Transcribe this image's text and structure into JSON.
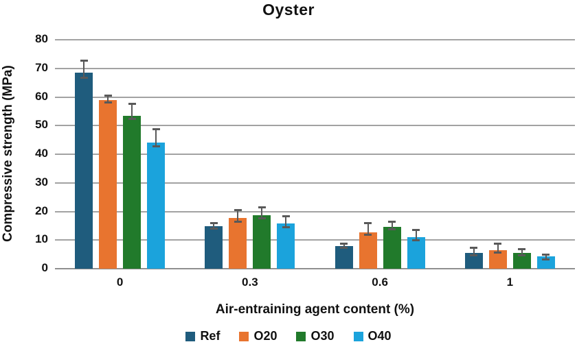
{
  "chart_data": {
    "type": "bar",
    "title": "Oyster",
    "xlabel": "Air-entraining agent content (%)",
    "ylabel": "Compressive strength (MPa)",
    "categories": [
      "0",
      "0.3",
      "0.6",
      "1"
    ],
    "series": [
      {
        "name": "Ref",
        "color": "#1f5c7d",
        "values": [
          68.5,
          14.8,
          7.9,
          5.5
        ],
        "err_up": [
          4.3,
          1.2,
          0.9,
          1.9
        ],
        "err_down": [
          1.8,
          0.8,
          0.5,
          0.8
        ]
      },
      {
        "name": "O20",
        "color": "#e8742f",
        "values": [
          59.0,
          17.8,
          12.7,
          6.5
        ],
        "err_up": [
          1.5,
          2.6,
          3.2,
          2.3
        ],
        "err_down": [
          1.0,
          1.3,
          0.9,
          0.9
        ]
      },
      {
        "name": "O30",
        "color": "#217a2b",
        "values": [
          53.5,
          18.8,
          14.5,
          5.5
        ],
        "err_up": [
          4.0,
          2.7,
          1.9,
          1.4
        ],
        "err_down": [
          1.2,
          1.2,
          0.8,
          0.9
        ]
      },
      {
        "name": "O40",
        "color": "#1ba3dc",
        "values": [
          44.0,
          15.8,
          11.0,
          4.2
        ],
        "err_up": [
          4.7,
          2.6,
          2.5,
          0.8
        ],
        "err_down": [
          1.2,
          1.3,
          1.0,
          0.9
        ]
      }
    ],
    "ylim": [
      0,
      80
    ],
    "ytick_step": 10,
    "grid": true,
    "legend_position": "bottom",
    "error_bar_color": "#595959",
    "gridline_color": "#a2a2a2",
    "text_color": "#111111"
  }
}
